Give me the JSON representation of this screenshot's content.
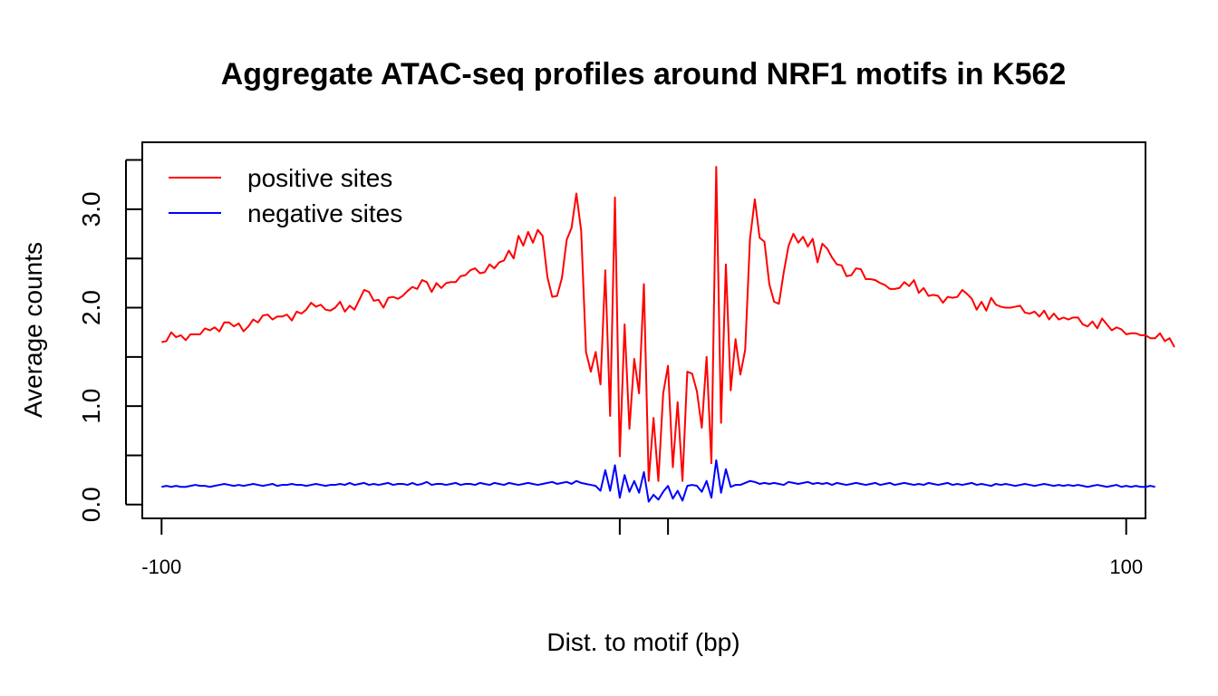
{
  "chart_data": {
    "type": "line",
    "title": "Aggregate ATAC-seq profiles around NRF1 motifs in K562",
    "xlabel": "Dist. to motif (bp)",
    "ylabel": "Average counts",
    "xlim": [
      -104,
      104
    ],
    "ylim": [
      -0.14,
      3.68
    ],
    "x_start": -100,
    "x_step": 1,
    "x_ticks": [
      {
        "value": -100,
        "label": "-100"
      },
      {
        "value": -5,
        "label": ""
      },
      {
        "value": 5,
        "label": ""
      },
      {
        "value": 100,
        "label": "100"
      }
    ],
    "y_ticks": [
      {
        "value": 0.0,
        "label": "0.0"
      },
      {
        "value": 0.5,
        "label": ""
      },
      {
        "value": 1.0,
        "label": "1.0"
      },
      {
        "value": 1.5,
        "label": ""
      },
      {
        "value": 2.0,
        "label": "2.0"
      },
      {
        "value": 2.5,
        "label": ""
      },
      {
        "value": 3.0,
        "label": "3.0"
      },
      {
        "value": 3.5,
        "label": ""
      }
    ],
    "legend_position": "top-left",
    "grid": false,
    "series": [
      {
        "name": "positive sites",
        "color": "#ff0000",
        "values": [
          1.65,
          1.66,
          1.75,
          1.7,
          1.72,
          1.67,
          1.73,
          1.73,
          1.73,
          1.79,
          1.77,
          1.8,
          1.76,
          1.85,
          1.85,
          1.81,
          1.84,
          1.76,
          1.81,
          1.88,
          1.85,
          1.92,
          1.93,
          1.88,
          1.91,
          1.91,
          1.93,
          1.87,
          1.96,
          1.94,
          1.98,
          2.05,
          2.01,
          2.03,
          1.98,
          1.97,
          2.0,
          2.06,
          1.96,
          2.02,
          1.98,
          2.08,
          2.18,
          2.16,
          2.07,
          2.08,
          2.0,
          2.1,
          2.11,
          2.09,
          2.12,
          2.17,
          2.21,
          2.19,
          2.28,
          2.26,
          2.16,
          2.25,
          2.2,
          2.25,
          2.26,
          2.26,
          2.32,
          2.33,
          2.38,
          2.4,
          2.35,
          2.36,
          2.44,
          2.4,
          2.46,
          2.48,
          2.58,
          2.5,
          2.73,
          2.63,
          2.77,
          2.66,
          2.79,
          2.73,
          2.31,
          2.11,
          2.12,
          2.3,
          2.69,
          2.81,
          3.16,
          2.78,
          1.55,
          1.35,
          1.55,
          1.22,
          2.38,
          0.9,
          3.12,
          0.49,
          1.83,
          0.77,
          1.48,
          1.13,
          2.24,
          0.24,
          0.88,
          0.24,
          1.13,
          1.41,
          0.38,
          1.04,
          0.24,
          1.35,
          1.33,
          1.15,
          0.78,
          1.5,
          0.42,
          3.43,
          0.83,
          2.44,
          1.16,
          1.68,
          1.32,
          1.57,
          2.7,
          3.1,
          2.71,
          2.67,
          2.24,
          2.06,
          2.04,
          2.36,
          2.63,
          2.75,
          2.66,
          2.72,
          2.62,
          2.7,
          2.46,
          2.65,
          2.6,
          2.51,
          2.44,
          2.43,
          2.32,
          2.33,
          2.4,
          2.39,
          2.29,
          2.29,
          2.28,
          2.25,
          2.23,
          2.19,
          2.19,
          2.2,
          2.26,
          2.22,
          2.28,
          2.15,
          2.2,
          2.12,
          2.13,
          2.12,
          2.05,
          2.11,
          2.1,
          2.11,
          2.18,
          2.14,
          2.09,
          1.98,
          2.06,
          1.97,
          2.1,
          2.03,
          2.01,
          2.0,
          2.0,
          2.01,
          2.02,
          1.95,
          1.94,
          1.96,
          1.91,
          1.97,
          1.88,
          1.94,
          1.88,
          1.9,
          1.88,
          1.9,
          1.9,
          1.83,
          1.81,
          1.86,
          1.79,
          1.89,
          1.83,
          1.77,
          1.8,
          1.78,
          1.73,
          1.74,
          1.74,
          1.72,
          1.72,
          1.69,
          1.69,
          1.74,
          1.66,
          1.69,
          1.6
        ]
      },
      {
        "name": "negative sites",
        "color": "#0000ff",
        "values": [
          0.18,
          0.19,
          0.18,
          0.19,
          0.18,
          0.18,
          0.19,
          0.2,
          0.19,
          0.19,
          0.18,
          0.19,
          0.2,
          0.21,
          0.2,
          0.19,
          0.2,
          0.19,
          0.2,
          0.21,
          0.2,
          0.19,
          0.2,
          0.21,
          0.19,
          0.2,
          0.2,
          0.21,
          0.2,
          0.2,
          0.19,
          0.2,
          0.21,
          0.2,
          0.19,
          0.2,
          0.2,
          0.21,
          0.2,
          0.22,
          0.2,
          0.21,
          0.22,
          0.2,
          0.21,
          0.2,
          0.21,
          0.22,
          0.2,
          0.21,
          0.21,
          0.2,
          0.22,
          0.2,
          0.21,
          0.23,
          0.2,
          0.21,
          0.21,
          0.2,
          0.21,
          0.22,
          0.2,
          0.21,
          0.21,
          0.2,
          0.22,
          0.21,
          0.2,
          0.22,
          0.21,
          0.2,
          0.22,
          0.21,
          0.2,
          0.21,
          0.22,
          0.21,
          0.2,
          0.21,
          0.22,
          0.23,
          0.21,
          0.22,
          0.23,
          0.21,
          0.24,
          0.22,
          0.21,
          0.2,
          0.19,
          0.14,
          0.35,
          0.14,
          0.4,
          0.07,
          0.3,
          0.13,
          0.24,
          0.12,
          0.33,
          0.03,
          0.1,
          0.05,
          0.13,
          0.19,
          0.06,
          0.14,
          0.04,
          0.19,
          0.2,
          0.19,
          0.13,
          0.24,
          0.07,
          0.45,
          0.12,
          0.36,
          0.18,
          0.2,
          0.2,
          0.22,
          0.24,
          0.23,
          0.21,
          0.22,
          0.21,
          0.22,
          0.21,
          0.2,
          0.23,
          0.22,
          0.21,
          0.22,
          0.23,
          0.21,
          0.22,
          0.21,
          0.22,
          0.2,
          0.22,
          0.21,
          0.2,
          0.21,
          0.22,
          0.21,
          0.2,
          0.21,
          0.22,
          0.2,
          0.21,
          0.22,
          0.2,
          0.21,
          0.22,
          0.21,
          0.2,
          0.21,
          0.2,
          0.22,
          0.21,
          0.2,
          0.21,
          0.22,
          0.2,
          0.21,
          0.2,
          0.21,
          0.22,
          0.2,
          0.21,
          0.2,
          0.19,
          0.21,
          0.2,
          0.21,
          0.2,
          0.19,
          0.2,
          0.21,
          0.2,
          0.19,
          0.2,
          0.21,
          0.2,
          0.19,
          0.2,
          0.19,
          0.2,
          0.19,
          0.2,
          0.19,
          0.18,
          0.19,
          0.2,
          0.19,
          0.18,
          0.19,
          0.2,
          0.18,
          0.19,
          0.18,
          0.19,
          0.18,
          0.18,
          0.19,
          0.18
        ]
      }
    ]
  }
}
